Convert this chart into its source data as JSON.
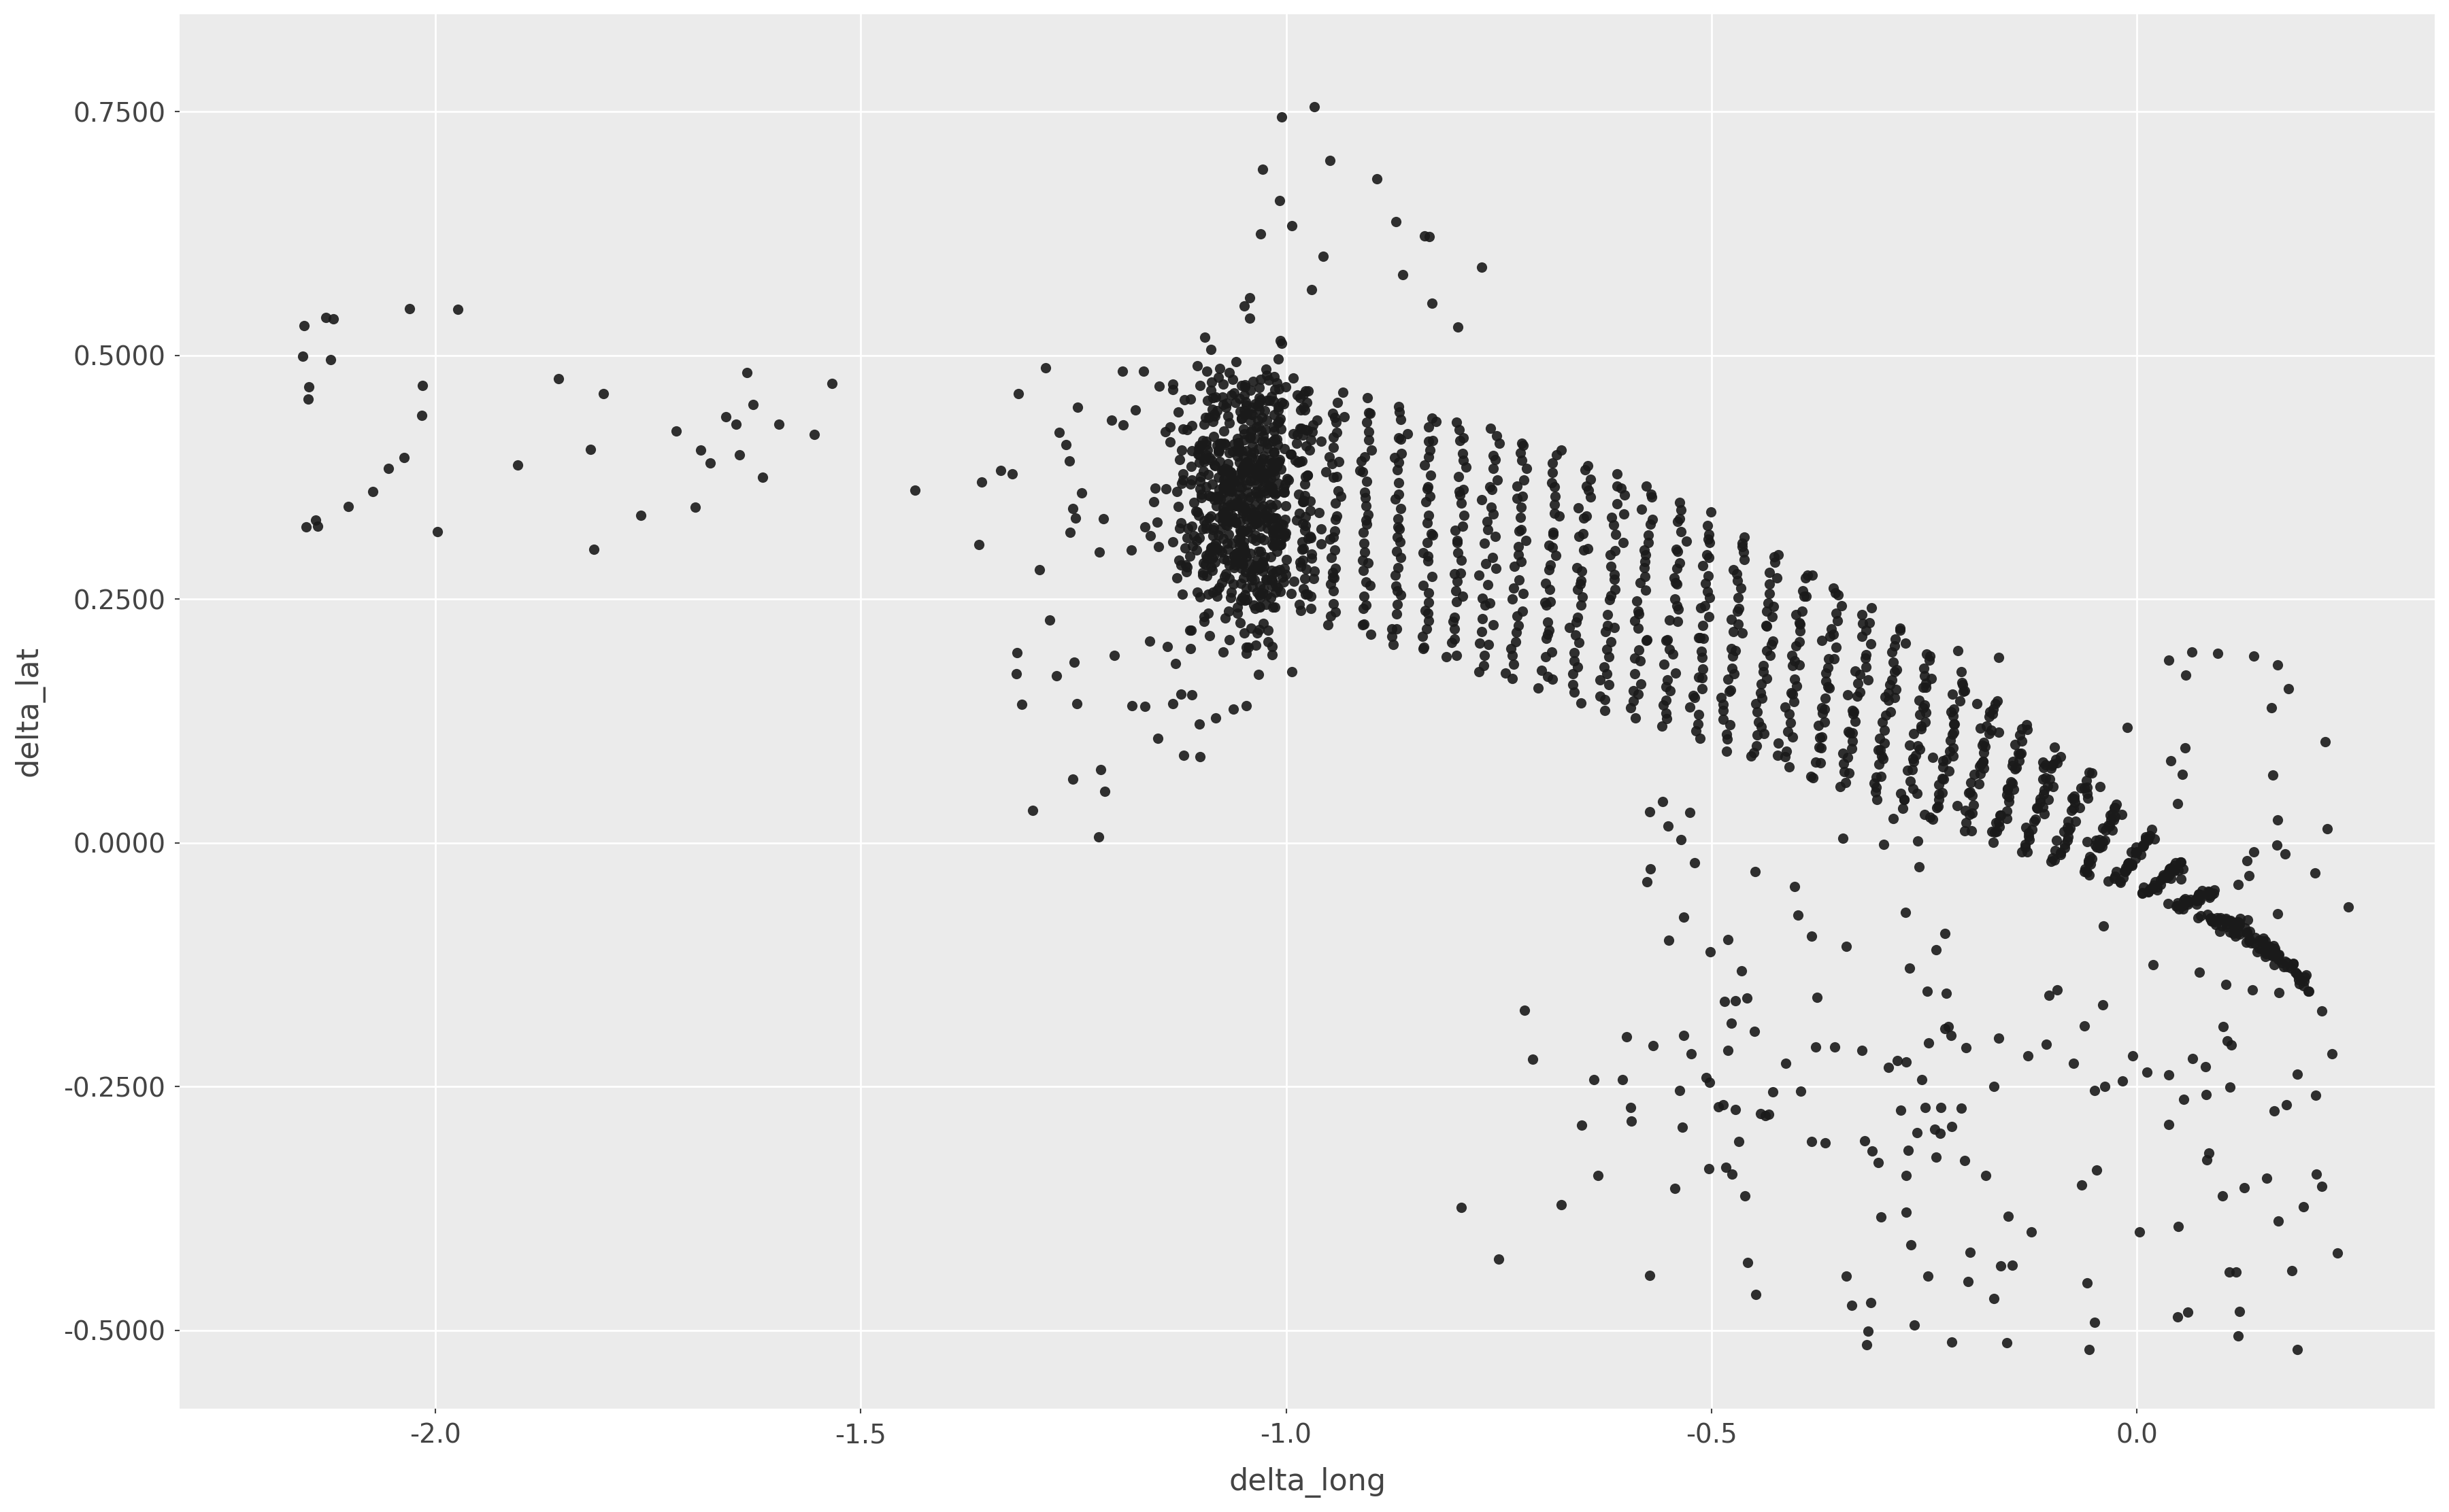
{
  "xlabel": "delta_long",
  "ylabel": "delta_lat",
  "xlim": [
    -2.3,
    0.35
  ],
  "ylim": [
    -0.58,
    0.85
  ],
  "xticks": [
    -2.0,
    -1.5,
    -1.0,
    -0.5,
    0.0
  ],
  "yticks": [
    -0.5,
    -0.25,
    0.0,
    0.25,
    0.5,
    0.75
  ],
  "background_color": "#EBEBEB",
  "grid_color": "#FFFFFF",
  "point_color": "#1a1a1a",
  "point_size": 120,
  "point_alpha": 0.9,
  "label_fontsize": 32,
  "tick_fontsize": 28,
  "figure_bg": "#FFFFFF"
}
